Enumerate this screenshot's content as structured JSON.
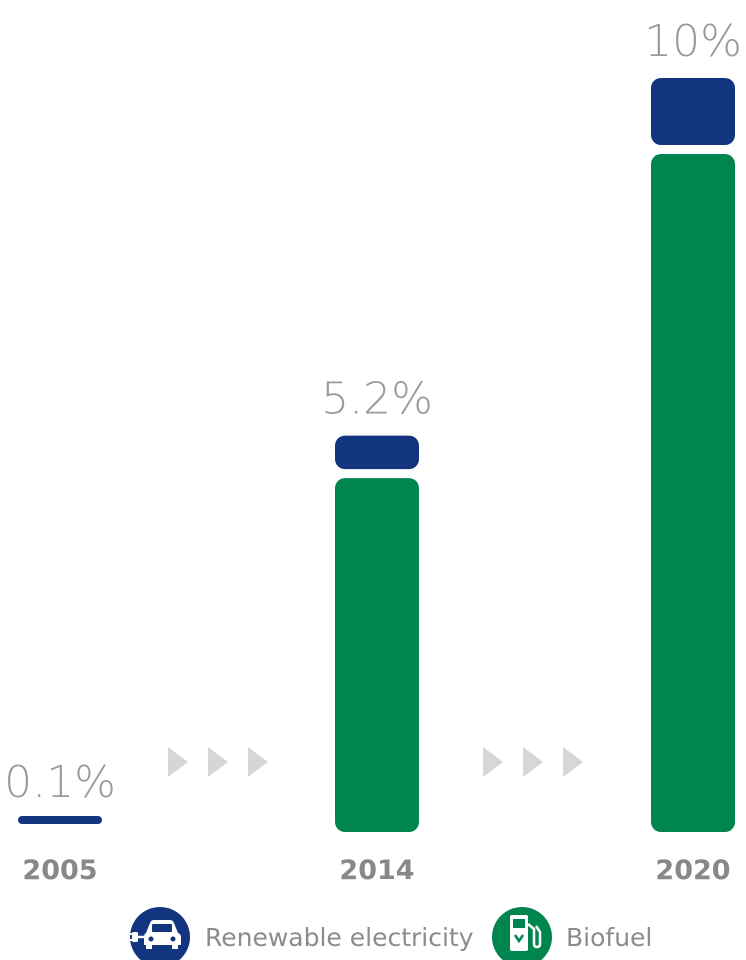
{
  "chart_data": {
    "type": "bar",
    "stacked": true,
    "categories": [
      "2005",
      "2014",
      "2020"
    ],
    "totals": [
      "0.1%",
      "5.2%",
      "10%"
    ],
    "series": [
      {
        "name": "Renewable electricity",
        "values": [
          0.1,
          0.45,
          0.9
        ]
      },
      {
        "name": "Biofuel",
        "values": [
          0.0,
          4.75,
          9.1
        ]
      }
    ],
    "ylim": [
      0,
      10
    ],
    "grid": false,
    "legend": "bottom"
  },
  "colors": {
    "renewable_electricity": "#13357f",
    "biofuel": "#00854f",
    "arrows": "#d6d6d6",
    "text": "#8c8c8c"
  },
  "legend": {
    "items": [
      {
        "label": "Renewable electricity",
        "icon": "electric-car-icon"
      },
      {
        "label": "Biofuel",
        "icon": "fuel-pump-icon"
      }
    ]
  }
}
